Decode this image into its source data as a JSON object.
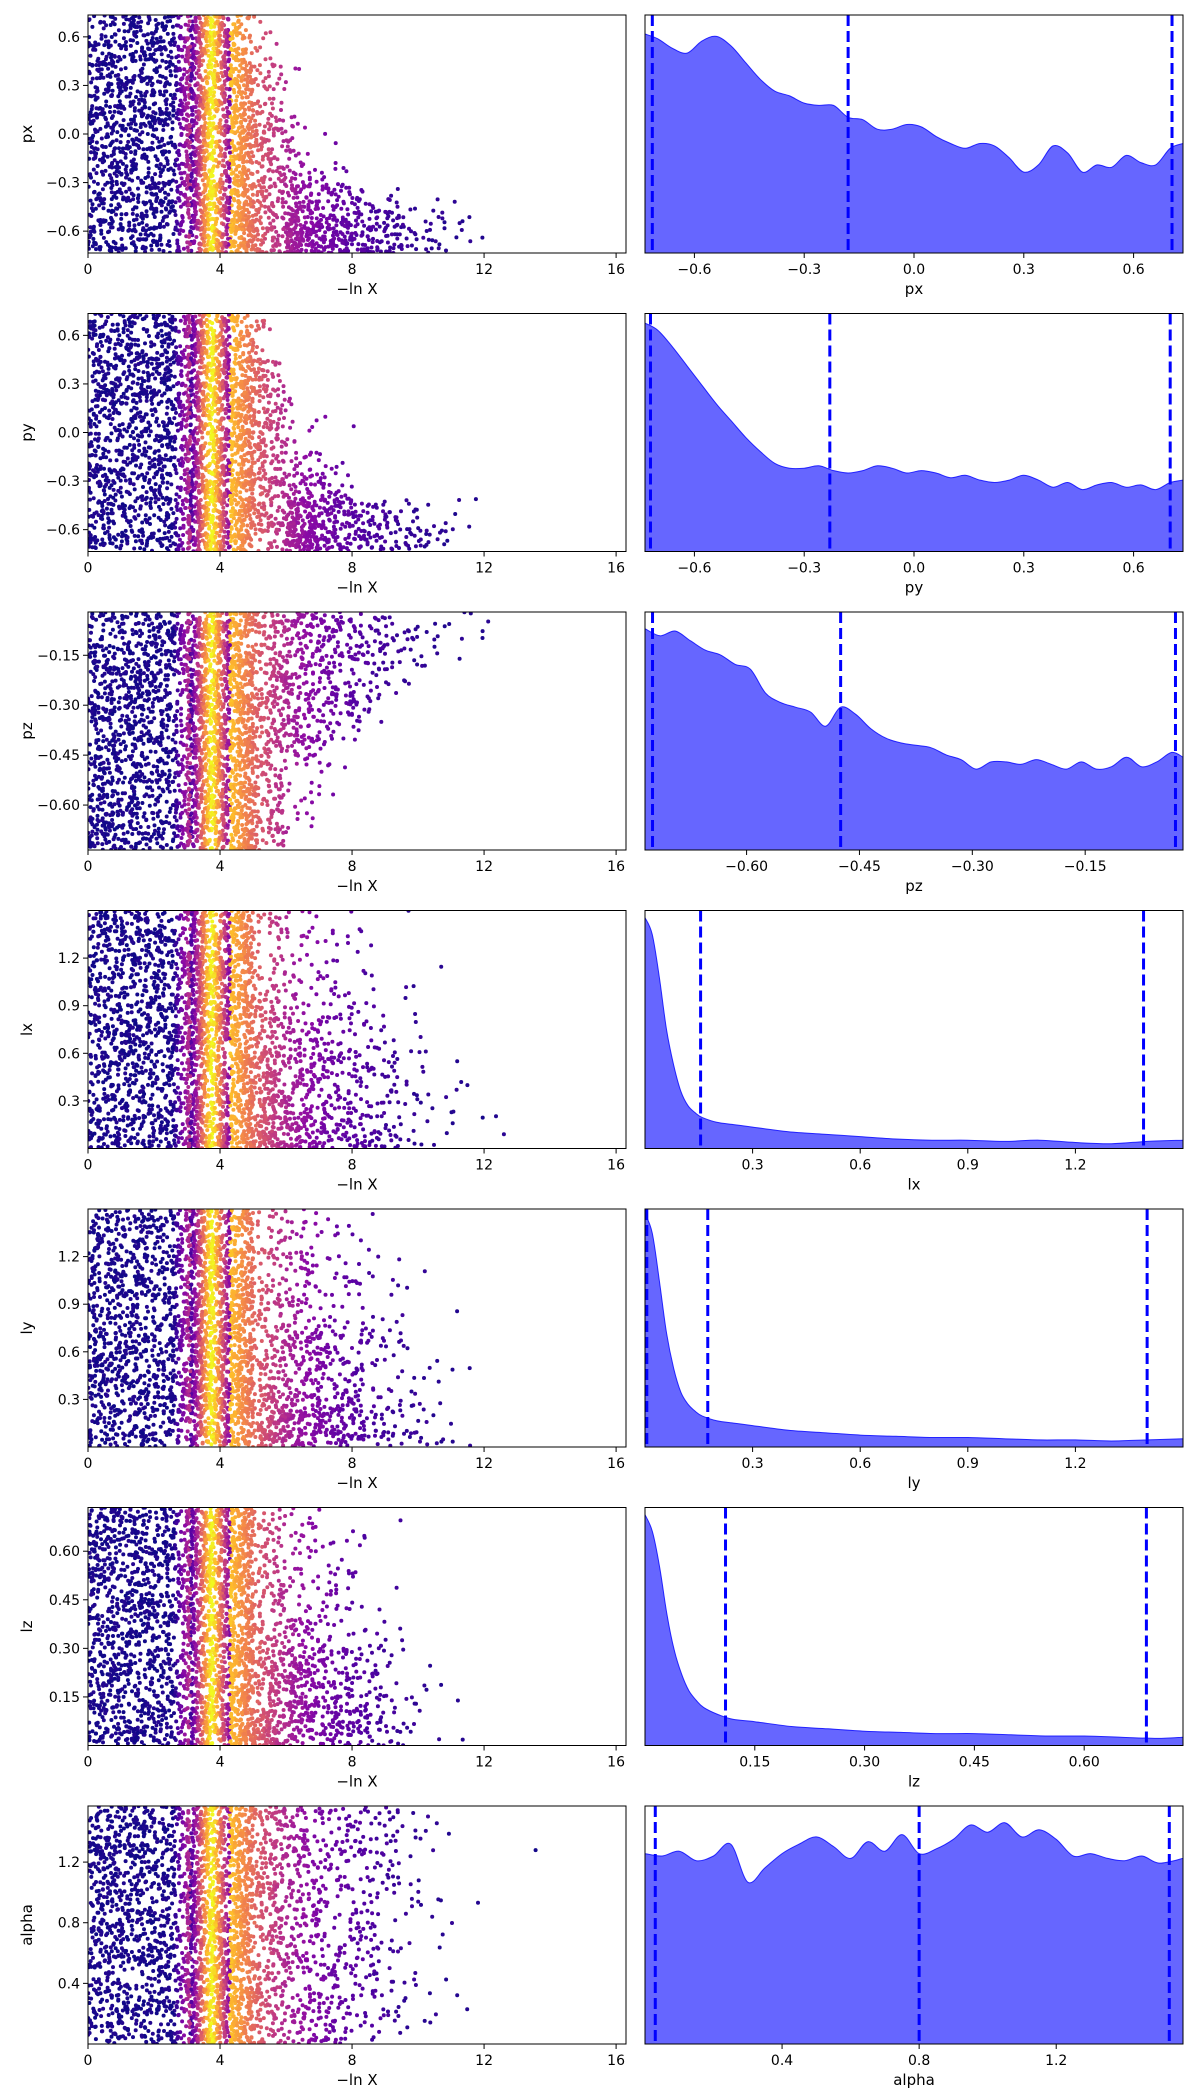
{
  "chart_data": [
    {
      "type": "scatter",
      "panel": "trace",
      "param": "px",
      "xlabel": "−ln X",
      "ylabel": "px",
      "xlim": [
        0,
        16.3
      ],
      "ylim": [
        -0.735,
        0.735
      ],
      "xticks": [
        0,
        4,
        8,
        12,
        16
      ],
      "yticks": [
        -0.6,
        -0.3,
        0.0,
        0.3,
        0.6
      ],
      "ytick_labels": [
        "−0.6",
        "−0.3",
        "0.0",
        "0.3",
        "0.6"
      ],
      "note_color": "plasma colormap by importance weight, peak near −ln X ≈ 4"
    },
    {
      "type": "area",
      "panel": "marginal",
      "param": "px",
      "xlabel": "px",
      "xlim": [
        -0.735,
        0.735
      ],
      "xticks": [
        -0.6,
        -0.3,
        0.0,
        0.3,
        0.6
      ],
      "xtick_labels": [
        "−0.6",
        "−0.3",
        "0.0",
        "0.3",
        "0.6"
      ],
      "quantiles": [
        -0.715,
        -0.18,
        0.705
      ],
      "x": [
        -0.735,
        -0.7,
        -0.66,
        -0.62,
        -0.58,
        -0.54,
        -0.5,
        -0.46,
        -0.42,
        -0.38,
        -0.34,
        -0.3,
        -0.26,
        -0.22,
        -0.18,
        -0.14,
        -0.1,
        -0.06,
        -0.02,
        0.02,
        0.06,
        0.1,
        0.14,
        0.18,
        0.22,
        0.26,
        0.3,
        0.34,
        0.38,
        0.42,
        0.46,
        0.5,
        0.54,
        0.58,
        0.62,
        0.66,
        0.7,
        0.735
      ],
      "density": [
        0.92,
        0.9,
        0.86,
        0.84,
        0.89,
        0.91,
        0.87,
        0.8,
        0.73,
        0.68,
        0.66,
        0.63,
        0.62,
        0.62,
        0.57,
        0.56,
        0.52,
        0.52,
        0.54,
        0.53,
        0.49,
        0.46,
        0.44,
        0.46,
        0.45,
        0.4,
        0.34,
        0.37,
        0.45,
        0.42,
        0.34,
        0.37,
        0.36,
        0.41,
        0.38,
        0.37,
        0.44,
        0.46
      ]
    },
    {
      "type": "scatter",
      "panel": "trace",
      "param": "py",
      "xlabel": "−ln X",
      "ylabel": "py",
      "xlim": [
        0,
        16.3
      ],
      "ylim": [
        -0.735,
        0.735
      ],
      "xticks": [
        0,
        4,
        8,
        12,
        16
      ],
      "yticks": [
        -0.6,
        -0.3,
        0.0,
        0.3,
        0.6
      ],
      "ytick_labels": [
        "−0.6",
        "−0.3",
        "0.0",
        "0.3",
        "0.6"
      ]
    },
    {
      "type": "area",
      "panel": "marginal",
      "param": "py",
      "xlabel": "py",
      "xlim": [
        -0.735,
        0.735
      ],
      "xticks": [
        -0.6,
        -0.3,
        0.0,
        0.3,
        0.6
      ],
      "xtick_labels": [
        "−0.6",
        "−0.3",
        "0.0",
        "0.3",
        "0.6"
      ],
      "quantiles": [
        -0.72,
        -0.23,
        0.7
      ],
      "x": [
        -0.735,
        -0.7,
        -0.66,
        -0.62,
        -0.58,
        -0.54,
        -0.5,
        -0.46,
        -0.42,
        -0.38,
        -0.34,
        -0.3,
        -0.26,
        -0.22,
        -0.18,
        -0.14,
        -0.1,
        -0.06,
        -0.02,
        0.02,
        0.06,
        0.1,
        0.14,
        0.18,
        0.22,
        0.26,
        0.3,
        0.34,
        0.38,
        0.42,
        0.46,
        0.5,
        0.54,
        0.58,
        0.62,
        0.66,
        0.7,
        0.735
      ],
      "density": [
        0.96,
        0.93,
        0.86,
        0.78,
        0.7,
        0.62,
        0.55,
        0.48,
        0.42,
        0.37,
        0.35,
        0.35,
        0.36,
        0.34,
        0.33,
        0.34,
        0.36,
        0.35,
        0.33,
        0.34,
        0.33,
        0.31,
        0.32,
        0.3,
        0.29,
        0.3,
        0.32,
        0.3,
        0.27,
        0.29,
        0.26,
        0.28,
        0.29,
        0.27,
        0.28,
        0.26,
        0.29,
        0.3
      ]
    },
    {
      "type": "scatter",
      "panel": "trace",
      "param": "pz",
      "xlabel": "−ln X",
      "ylabel": "pz",
      "xlim": [
        0,
        16.3
      ],
      "ylim": [
        -0.735,
        -0.02
      ],
      "xticks": [
        0,
        4,
        8,
        12,
        16
      ],
      "yticks": [
        -0.6,
        -0.45,
        -0.3,
        -0.15
      ],
      "ytick_labels": [
        "−0.60",
        "−0.45",
        "−0.30",
        "−0.15"
      ]
    },
    {
      "type": "area",
      "panel": "marginal",
      "param": "pz",
      "xlabel": "pz",
      "xlim": [
        -0.735,
        -0.02
      ],
      "xticks": [
        -0.6,
        -0.45,
        -0.3,
        -0.15
      ],
      "xtick_labels": [
        "−0.60",
        "−0.45",
        "−0.30",
        "−0.15"
      ],
      "quantiles": [
        -0.725,
        -0.475,
        -0.03
      ],
      "x": [
        -0.735,
        -0.715,
        -0.695,
        -0.675,
        -0.655,
        -0.635,
        -0.615,
        -0.595,
        -0.575,
        -0.555,
        -0.535,
        -0.515,
        -0.495,
        -0.475,
        -0.455,
        -0.435,
        -0.415,
        -0.395,
        -0.375,
        -0.355,
        -0.335,
        -0.315,
        -0.295,
        -0.275,
        -0.255,
        -0.235,
        -0.215,
        -0.195,
        -0.175,
        -0.155,
        -0.135,
        -0.115,
        -0.095,
        -0.075,
        -0.055,
        -0.035,
        -0.02
      ],
      "density": [
        0.93,
        0.9,
        0.92,
        0.88,
        0.84,
        0.82,
        0.78,
        0.76,
        0.66,
        0.62,
        0.6,
        0.58,
        0.52,
        0.6,
        0.57,
        0.51,
        0.47,
        0.45,
        0.44,
        0.43,
        0.4,
        0.38,
        0.34,
        0.37,
        0.37,
        0.36,
        0.38,
        0.36,
        0.34,
        0.37,
        0.34,
        0.35,
        0.39,
        0.35,
        0.37,
        0.41,
        0.39
      ]
    },
    {
      "type": "scatter",
      "panel": "trace",
      "param": "lx",
      "xlabel": "−ln X",
      "ylabel": "lx",
      "xlim": [
        0,
        16.3
      ],
      "ylim": [
        0,
        1.5
      ],
      "xticks": [
        0,
        4,
        8,
        12,
        16
      ],
      "yticks": [
        0.3,
        0.6,
        0.9,
        1.2
      ],
      "ytick_labels": [
        "0.3",
        "0.6",
        "0.9",
        "1.2"
      ]
    },
    {
      "type": "area",
      "panel": "marginal",
      "param": "lx",
      "xlabel": "lx",
      "xlim": [
        0,
        1.5
      ],
      "xticks": [
        0.3,
        0.6,
        0.9,
        1.2
      ],
      "xtick_labels": [
        "0.3",
        "0.6",
        "0.9",
        "1.2"
      ],
      "quantiles": [
        0.155,
        1.39
      ],
      "x": [
        0,
        0.02,
        0.04,
        0.06,
        0.08,
        0.1,
        0.12,
        0.14,
        0.16,
        0.2,
        0.25,
        0.3,
        0.4,
        0.5,
        0.6,
        0.7,
        0.8,
        0.9,
        1.0,
        1.1,
        1.2,
        1.3,
        1.4,
        1.5
      ],
      "density": [
        0.97,
        0.9,
        0.72,
        0.5,
        0.35,
        0.24,
        0.18,
        0.15,
        0.13,
        0.11,
        0.1,
        0.09,
        0.07,
        0.06,
        0.05,
        0.04,
        0.035,
        0.035,
        0.03,
        0.035,
        0.025,
        0.02,
        0.03,
        0.035
      ]
    },
    {
      "type": "scatter",
      "panel": "trace",
      "param": "ly",
      "xlabel": "−ln X",
      "ylabel": "ly",
      "xlim": [
        0,
        16.3
      ],
      "ylim": [
        0,
        1.5
      ],
      "xticks": [
        0,
        4,
        8,
        12,
        16
      ],
      "yticks": [
        0.3,
        0.6,
        0.9,
        1.2
      ],
      "ytick_labels": [
        "0.3",
        "0.6",
        "0.9",
        "1.2"
      ]
    },
    {
      "type": "area",
      "panel": "marginal",
      "param": "ly",
      "xlabel": "ly",
      "xlim": [
        0,
        1.5
      ],
      "xticks": [
        0.3,
        0.6,
        0.9,
        1.2
      ],
      "xtick_labels": [
        "0.3",
        "0.6",
        "0.9",
        "1.2"
      ],
      "quantiles": [
        0.005,
        0.175,
        1.4
      ],
      "x": [
        0,
        0.02,
        0.04,
        0.06,
        0.08,
        0.1,
        0.12,
        0.14,
        0.16,
        0.2,
        0.25,
        0.3,
        0.4,
        0.5,
        0.6,
        0.7,
        0.8,
        0.9,
        1.0,
        1.1,
        1.2,
        1.3,
        1.4,
        1.5
      ],
      "density": [
        0.98,
        0.9,
        0.7,
        0.48,
        0.33,
        0.23,
        0.18,
        0.15,
        0.13,
        0.11,
        0.1,
        0.09,
        0.07,
        0.06,
        0.05,
        0.045,
        0.04,
        0.04,
        0.035,
        0.03,
        0.03,
        0.025,
        0.03,
        0.035
      ]
    },
    {
      "type": "scatter",
      "panel": "trace",
      "param": "lz",
      "xlabel": "−ln X",
      "ylabel": "lz",
      "xlim": [
        0,
        16.3
      ],
      "ylim": [
        0,
        0.735
      ],
      "xticks": [
        0,
        4,
        8,
        12,
        16
      ],
      "yticks": [
        0.15,
        0.3,
        0.45,
        0.6
      ],
      "ytick_labels": [
        "0.15",
        "0.30",
        "0.45",
        "0.60"
      ]
    },
    {
      "type": "area",
      "panel": "marginal",
      "param": "lz",
      "xlabel": "lz",
      "xlim": [
        0,
        0.735
      ],
      "xticks": [
        0.15,
        0.3,
        0.45,
        0.6
      ],
      "xtick_labels": [
        "0.15",
        "0.30",
        "0.45",
        "0.60"
      ],
      "quantiles": [
        0.11,
        0.685
      ],
      "x": [
        0,
        0.01,
        0.02,
        0.03,
        0.04,
        0.05,
        0.06,
        0.07,
        0.08,
        0.1,
        0.12,
        0.15,
        0.2,
        0.25,
        0.3,
        0.35,
        0.4,
        0.45,
        0.5,
        0.55,
        0.6,
        0.65,
        0.7,
        0.735
      ],
      "density": [
        0.97,
        0.9,
        0.75,
        0.55,
        0.4,
        0.3,
        0.23,
        0.19,
        0.16,
        0.13,
        0.11,
        0.1,
        0.08,
        0.07,
        0.06,
        0.055,
        0.05,
        0.05,
        0.045,
        0.04,
        0.04,
        0.035,
        0.03,
        0.035
      ]
    },
    {
      "type": "scatter",
      "panel": "trace",
      "param": "alpha",
      "xlabel": "−ln X",
      "ylabel": "alpha",
      "xlim": [
        0,
        16.3
      ],
      "ylim": [
        0,
        1.57
      ],
      "xticks": [
        0,
        4,
        8,
        12,
        16
      ],
      "yticks": [
        0.4,
        0.8,
        1.2
      ],
      "ytick_labels": [
        "0.4",
        "0.8",
        "1.2"
      ]
    },
    {
      "type": "area",
      "panel": "marginal",
      "param": "alpha",
      "xlabel": "alpha",
      "xlim": [
        0,
        1.57
      ],
      "xticks": [
        0.4,
        0.8,
        1.2
      ],
      "xtick_labels": [
        "0.4",
        "0.8",
        "1.2"
      ],
      "quantiles": [
        0.03,
        0.8,
        1.53
      ],
      "x": [
        0,
        0.05,
        0.1,
        0.15,
        0.2,
        0.25,
        0.3,
        0.35,
        0.4,
        0.45,
        0.5,
        0.55,
        0.6,
        0.65,
        0.7,
        0.75,
        0.8,
        0.85,
        0.9,
        0.95,
        1.0,
        1.05,
        1.1,
        1.15,
        1.2,
        1.25,
        1.3,
        1.35,
        1.4,
        1.45,
        1.5,
        1.57
      ],
      "density": [
        0.8,
        0.79,
        0.81,
        0.77,
        0.79,
        0.84,
        0.68,
        0.74,
        0.8,
        0.84,
        0.87,
        0.83,
        0.78,
        0.85,
        0.81,
        0.88,
        0.8,
        0.82,
        0.86,
        0.92,
        0.89,
        0.93,
        0.87,
        0.9,
        0.86,
        0.79,
        0.8,
        0.78,
        0.77,
        0.79,
        0.76,
        0.78
      ]
    }
  ]
}
